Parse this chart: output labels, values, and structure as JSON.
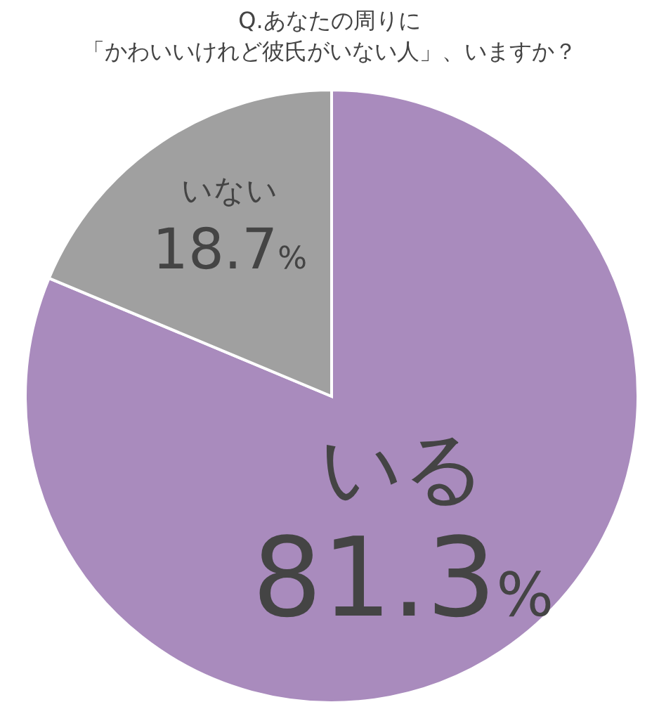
{
  "chart_data": {
    "type": "pie",
    "title": "Q.あなたの周りに",
    "subtitle": "「かわいいけれど彼氏がいない人」、いますか？",
    "categories": [
      "いる",
      "いない"
    ],
    "values": [
      81.3,
      18.7
    ],
    "value_labels": [
      "81.3%",
      "18.7%"
    ],
    "colors": [
      "#a98bbd",
      "#a0a0a0"
    ]
  }
}
